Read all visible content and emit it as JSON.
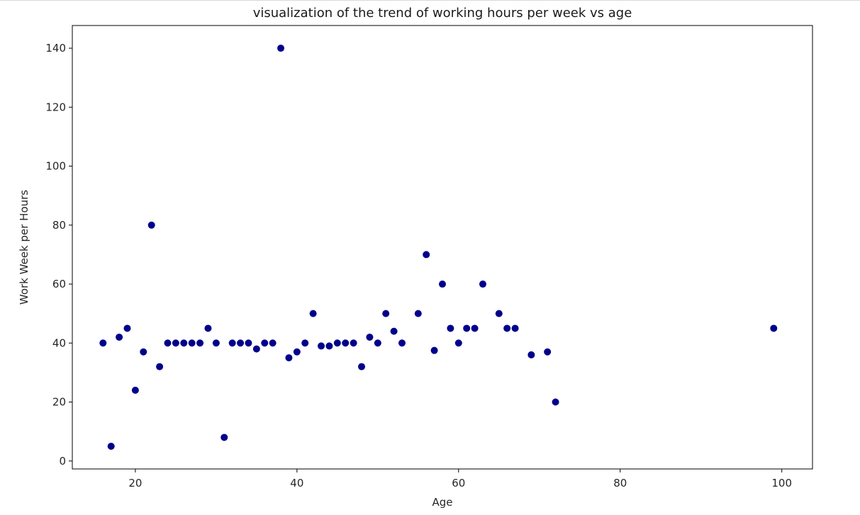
{
  "chart_data": {
    "type": "scatter",
    "title": "visualization of the trend of working hours per week vs age",
    "xlabel": "Age",
    "ylabel": "Work Week per Hours",
    "xlim": [
      12.2,
      103.8
    ],
    "ylim": [
      -2.7,
      147.7
    ],
    "xticks": [
      20,
      40,
      60,
      80,
      100
    ],
    "yticks": [
      0,
      20,
      40,
      60,
      80,
      100,
      120,
      140
    ],
    "grid": false,
    "marker_color": "#00008b",
    "series": [
      {
        "points": [
          [
            16,
            40
          ],
          [
            17,
            5
          ],
          [
            18,
            42
          ],
          [
            19,
            45
          ],
          [
            20,
            24
          ],
          [
            21,
            37
          ],
          [
            22,
            80
          ],
          [
            23,
            32
          ],
          [
            24,
            40
          ],
          [
            25,
            40
          ],
          [
            26,
            40
          ],
          [
            27,
            40
          ],
          [
            28,
            40
          ],
          [
            29,
            45
          ],
          [
            30,
            40
          ],
          [
            31,
            8
          ],
          [
            32,
            40
          ],
          [
            33,
            40
          ],
          [
            34,
            40
          ],
          [
            35,
            38
          ],
          [
            36,
            40
          ],
          [
            37,
            40
          ],
          [
            38,
            140
          ],
          [
            39,
            35
          ],
          [
            40,
            37
          ],
          [
            41,
            40
          ],
          [
            42,
            50
          ],
          [
            43,
            39
          ],
          [
            44,
            39
          ],
          [
            45,
            40
          ],
          [
            46,
            40
          ],
          [
            47,
            40
          ],
          [
            48,
            32
          ],
          [
            49,
            42
          ],
          [
            50,
            40
          ],
          [
            51,
            50
          ],
          [
            52,
            44
          ],
          [
            53,
            40
          ],
          [
            55,
            50
          ],
          [
            56,
            70
          ],
          [
            57,
            37.5
          ],
          [
            58,
            60
          ],
          [
            59,
            45
          ],
          [
            60,
            40
          ],
          [
            61,
            45
          ],
          [
            62,
            45
          ],
          [
            63,
            60
          ],
          [
            65,
            50
          ],
          [
            66,
            45
          ],
          [
            67,
            45
          ],
          [
            69,
            36
          ],
          [
            71,
            37
          ],
          [
            72,
            20
          ],
          [
            99,
            45
          ]
        ]
      }
    ]
  }
}
